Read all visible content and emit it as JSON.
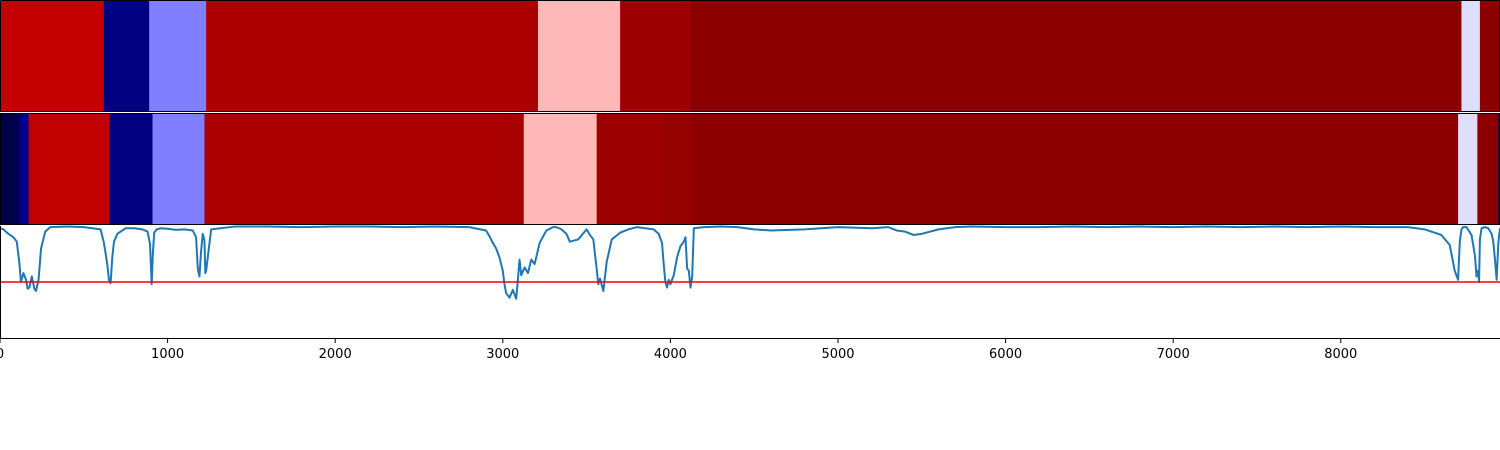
{
  "chart_data": {
    "type": "heatmap",
    "xlim": [
      0,
      8950
    ],
    "x_ticks": [
      "0",
      "1000",
      "2000",
      "3000",
      "4000",
      "5000",
      "6000",
      "7000",
      "8000"
    ],
    "x_tick_values": [
      0,
      1000,
      2000,
      3000,
      4000,
      5000,
      6000,
      7000,
      8000
    ],
    "colormap": "seismic",
    "tracks": [
      {
        "kind": "segments",
        "segments": [
          {
            "start": 0,
            "end": 620,
            "color": "#c40000"
          },
          {
            "start": 620,
            "end": 890,
            "color": "#000080"
          },
          {
            "start": 890,
            "end": 1230,
            "color": "#7f7fff"
          },
          {
            "start": 1230,
            "end": 3210,
            "color": "#ad0000"
          },
          {
            "start": 3210,
            "end": 3700,
            "color": "#ffb8b8"
          },
          {
            "start": 3700,
            "end": 4120,
            "color": "#9c0000"
          },
          {
            "start": 4120,
            "end": 8720,
            "color": "#8c0000"
          },
          {
            "start": 8720,
            "end": 8830,
            "color": "#dedeff"
          },
          {
            "start": 8830,
            "end": 8950,
            "color": "#8c0000"
          },
          {
            "start": 8950,
            "end": 8960,
            "color": "#00005c"
          }
        ]
      },
      {
        "kind": "segments",
        "segments": [
          {
            "start": 0,
            "end": 115,
            "color": "#00004a"
          },
          {
            "start": 115,
            "end": 170,
            "color": "#00008a"
          },
          {
            "start": 170,
            "end": 655,
            "color": "#c10000"
          },
          {
            "start": 655,
            "end": 910,
            "color": "#000080"
          },
          {
            "start": 910,
            "end": 1220,
            "color": "#7f7fff"
          },
          {
            "start": 1220,
            "end": 3010,
            "color": "#ad0000"
          },
          {
            "start": 3010,
            "end": 3125,
            "color": "#a80000"
          },
          {
            "start": 3125,
            "end": 3560,
            "color": "#ffb8b8"
          },
          {
            "start": 3560,
            "end": 3960,
            "color": "#9c0000"
          },
          {
            "start": 3960,
            "end": 4130,
            "color": "#950000"
          },
          {
            "start": 4130,
            "end": 8700,
            "color": "#8c0000"
          },
          {
            "start": 8700,
            "end": 8815,
            "color": "#dedeff"
          },
          {
            "start": 8815,
            "end": 8940,
            "color": "#8c0000"
          },
          {
            "start": 8940,
            "end": 8960,
            "color": "#00005c"
          }
        ]
      }
    ],
    "line": {
      "color": "#1f77b4",
      "ylim": [
        0,
        1
      ],
      "x": [
        0,
        20,
        50,
        80,
        100,
        115,
        125,
        140,
        155,
        165,
        175,
        190,
        205,
        215,
        230,
        245,
        270,
        300,
        400,
        500,
        600,
        620,
        640,
        650,
        660,
        670,
        680,
        700,
        750,
        800,
        850,
        880,
        895,
        905,
        912,
        920,
        935,
        960,
        1000,
        1050,
        1100,
        1150,
        1170,
        1180,
        1190,
        1200,
        1210,
        1220,
        1225,
        1230,
        1260,
        1400,
        1600,
        1800,
        2000,
        2200,
        2400,
        2600,
        2800,
        2900,
        2920,
        2940,
        2960,
        2980,
        3000,
        3010,
        3020,
        3040,
        3060,
        3080,
        3090,
        3100,
        3110,
        3130,
        3150,
        3170,
        3190,
        3220,
        3260,
        3300,
        3320,
        3350,
        3380,
        3400,
        3450,
        3500,
        3520,
        3540,
        3550,
        3560,
        3570,
        3580,
        3600,
        3620,
        3650,
        3700,
        3750,
        3800,
        3850,
        3900,
        3930,
        3950,
        3960,
        3970,
        3980,
        3990,
        4000,
        4020,
        4040,
        4060,
        4080,
        4090,
        4100,
        4110,
        4120,
        4130,
        4140,
        4200,
        4300,
        4400,
        4500,
        4600,
        4800,
        5000,
        5200,
        5300,
        5350,
        5400,
        5450,
        5500,
        5600,
        5700,
        5800,
        6000,
        6200,
        6400,
        6600,
        6800,
        7000,
        7200,
        7400,
        7600,
        7800,
        8000,
        8200,
        8400,
        8500,
        8600,
        8650,
        8680,
        8700,
        8710,
        8720,
        8730,
        8750,
        8780,
        8800,
        8810,
        8820,
        8825,
        8830,
        8840,
        8860,
        8880,
        8900,
        8910,
        8920,
        8930,
        8940,
        8950
      ],
      "y": [
        0.98,
        0.97,
        0.93,
        0.9,
        0.86,
        0.68,
        0.5,
        0.58,
        0.52,
        0.44,
        0.45,
        0.55,
        0.44,
        0.42,
        0.52,
        0.8,
        0.95,
        0.99,
        0.995,
        0.99,
        0.97,
        0.85,
        0.66,
        0.52,
        0.49,
        0.72,
        0.86,
        0.93,
        0.98,
        0.98,
        0.97,
        0.95,
        0.84,
        0.48,
        0.75,
        0.94,
        0.97,
        0.98,
        0.975,
        0.965,
        0.97,
        0.96,
        0.9,
        0.62,
        0.55,
        0.78,
        0.93,
        0.87,
        0.58,
        0.6,
        0.97,
        0.995,
        0.995,
        0.99,
        0.995,
        0.995,
        0.99,
        0.995,
        0.99,
        0.96,
        0.91,
        0.85,
        0.8,
        0.72,
        0.6,
        0.48,
        0.4,
        0.36,
        0.43,
        0.35,
        0.52,
        0.7,
        0.56,
        0.63,
        0.58,
        0.7,
        0.66,
        0.85,
        0.96,
        0.99,
        0.99,
        0.97,
        0.93,
        0.86,
        0.88,
        0.97,
        0.92,
        0.88,
        0.75,
        0.62,
        0.48,
        0.53,
        0.42,
        0.68,
        0.88,
        0.94,
        0.97,
        0.99,
        0.98,
        0.97,
        0.93,
        0.85,
        0.66,
        0.5,
        0.45,
        0.52,
        0.48,
        0.56,
        0.72,
        0.82,
        0.86,
        0.9,
        0.62,
        0.6,
        0.45,
        0.55,
        0.98,
        0.99,
        0.995,
        0.99,
        0.97,
        0.96,
        0.97,
        0.99,
        0.98,
        0.99,
        0.96,
        0.95,
        0.92,
        0.93,
        0.97,
        0.99,
        0.995,
        0.99,
        0.99,
        0.995,
        0.99,
        0.995,
        0.99,
        0.995,
        0.99,
        0.995,
        0.99,
        0.995,
        0.99,
        0.99,
        0.97,
        0.92,
        0.83,
        0.6,
        0.52,
        0.86,
        0.97,
        0.99,
        0.99,
        0.92,
        0.74,
        0.55,
        0.6,
        0.5,
        0.88,
        0.98,
        0.99,
        0.98,
        0.93,
        0.86,
        0.7,
        0.52,
        0.85,
        0.98
      ]
    },
    "threshold": {
      "value": 0.5,
      "color": "#ff0000"
    }
  }
}
